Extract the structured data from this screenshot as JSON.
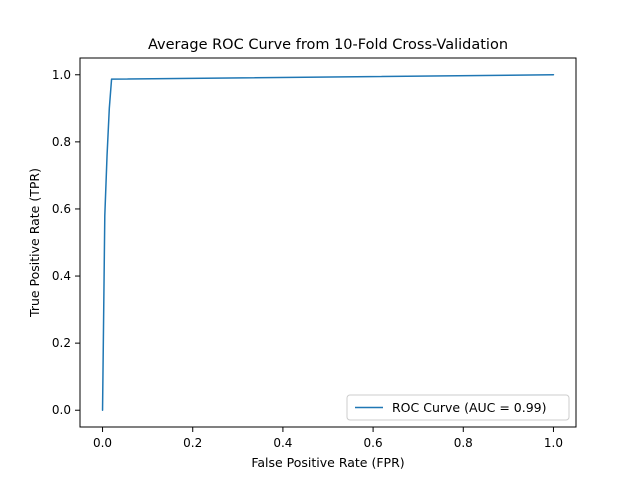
{
  "chart_data": {
    "type": "line",
    "title": "Average ROC Curve from 10-Fold Cross-Validation",
    "xlabel": "False Positive Rate (FPR)",
    "ylabel": "True Positive Rate (TPR)",
    "xlim": [
      -0.05,
      1.05
    ],
    "ylim": [
      -0.05,
      1.05
    ],
    "x_ticks": [
      0.0,
      0.2,
      0.4,
      0.6,
      0.8,
      1.0
    ],
    "y_ticks": [
      0.0,
      0.2,
      0.4,
      0.6,
      0.8,
      1.0
    ],
    "x_tick_labels": [
      "0.0",
      "0.2",
      "0.4",
      "0.6",
      "0.8",
      "1.0"
    ],
    "y_tick_labels": [
      "0.0",
      "0.2",
      "0.4",
      "0.6",
      "0.8",
      "1.0"
    ],
    "grid": false,
    "legend_position": "lower-right",
    "series": [
      {
        "name": "ROC Curve (AUC = 0.99)",
        "color": "#1f77b4",
        "x": [
          0.0,
          0.005,
          0.01,
          0.015,
          0.02,
          1.0
        ],
        "y": [
          0.0,
          0.58,
          0.76,
          0.9,
          0.987,
          1.0
        ]
      }
    ]
  }
}
